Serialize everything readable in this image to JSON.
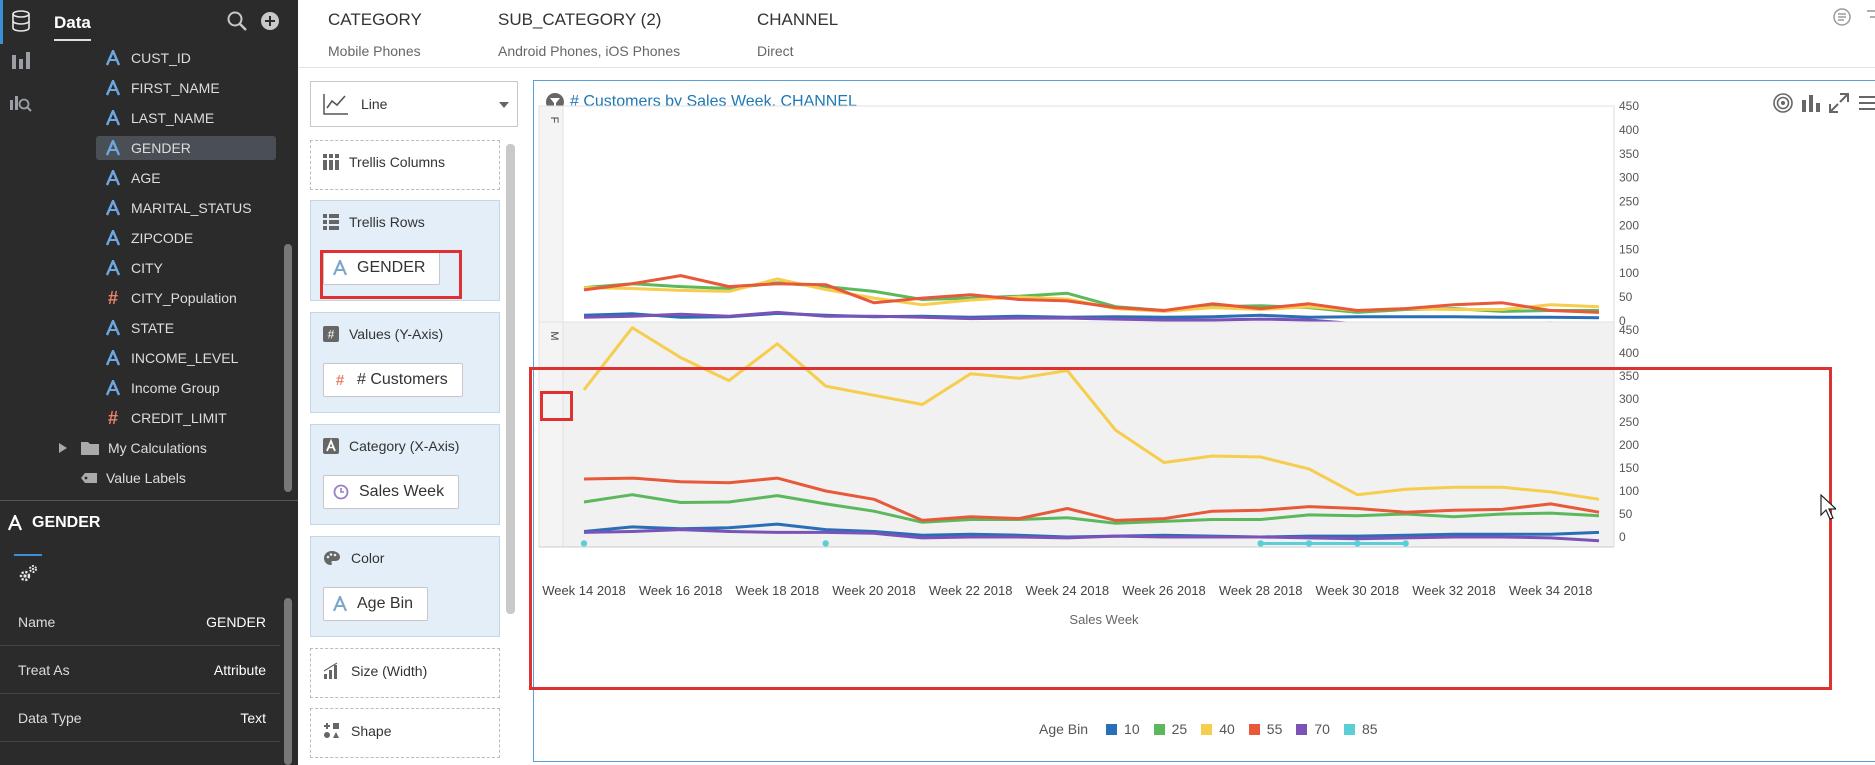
{
  "sidebar": {
    "title": "Data",
    "rail_icons": [
      "database-icon",
      "bar-chart-icon",
      "analytics-icon"
    ],
    "items": [
      {
        "label": "CUST_ID",
        "kind": "attribute"
      },
      {
        "label": "FIRST_NAME",
        "kind": "attribute"
      },
      {
        "label": "LAST_NAME",
        "kind": "attribute"
      },
      {
        "label": "GENDER",
        "kind": "attribute",
        "selected": true
      },
      {
        "label": "AGE",
        "kind": "attribute"
      },
      {
        "label": "MARITAL_STATUS",
        "kind": "attribute"
      },
      {
        "label": "ZIPCODE",
        "kind": "attribute"
      },
      {
        "label": "CITY",
        "kind": "attribute"
      },
      {
        "label": "CITY_Population",
        "kind": "measure"
      },
      {
        "label": "STATE",
        "kind": "attribute"
      },
      {
        "label": "INCOME_LEVEL",
        "kind": "attribute"
      },
      {
        "label": "Income Group",
        "kind": "attribute"
      },
      {
        "label": "CREDIT_LIMIT",
        "kind": "measure"
      }
    ],
    "folders": [
      {
        "label": "My Calculations"
      },
      {
        "label": "Value Labels"
      }
    ]
  },
  "properties": {
    "title": "GENDER",
    "rows": [
      {
        "key": "Name",
        "value": "GENDER"
      },
      {
        "key": "Treat As",
        "value": "Attribute"
      },
      {
        "key": "Data Type",
        "value": "Text"
      }
    ]
  },
  "filters": [
    {
      "name": "CATEGORY",
      "value": "Mobile Phones"
    },
    {
      "name": "SUB_CATEGORY (2)",
      "value": "Android Phones, iOS Phones"
    },
    {
      "name": "CHANNEL",
      "value": "Direct"
    }
  ],
  "grammar": {
    "chart_type": "Line",
    "trellis_columns": "Trellis Columns",
    "trellis_rows": {
      "label": "Trellis Rows",
      "pill": "GENDER"
    },
    "values": {
      "label": "Values (Y-Axis)",
      "pill": "# Customers"
    },
    "category": {
      "label": "Category (X-Axis)",
      "pill": "Sales Week"
    },
    "color": {
      "label": "Color",
      "pill": "Age Bin"
    },
    "size": "Size (Width)",
    "shape": "Shape"
  },
  "colors": {
    "10": "#2a6eb5",
    "25": "#5cb85c",
    "40": "#f6cd4c",
    "55": "#e8583a",
    "70": "#7a52b8",
    "85": "#5bcfd8",
    "accent": "#1f78b4",
    "highlight": "#e03131"
  },
  "chart_data": {
    "type": "line",
    "title": "# Customers by Sales Week, CHANNEL",
    "xlabel": "Sales Week",
    "x_tick_labels": [
      "Week 14 2018",
      "Week 16 2018",
      "Week 18 2018",
      "Week 20 2018",
      "Week 22 2018",
      "Week 24 2018",
      "Week 26 2018",
      "Week 28 2018",
      "Week 30 2018",
      "Week 32 2018",
      "Week 34 2018"
    ],
    "x": [
      14,
      15,
      16,
      17,
      18,
      19,
      20,
      21,
      22,
      23,
      24,
      25,
      26,
      27,
      28,
      29,
      30,
      31,
      32,
      33,
      34,
      35
    ],
    "yticks": [
      "0",
      "50",
      "100",
      "150",
      "200",
      "250",
      "300",
      "350",
      "400",
      "450"
    ],
    "ylim": [
      0,
      450
    ],
    "legend_title": "Age Bin",
    "legend_placement": "bottom",
    "trellis_rows": [
      {
        "label": "F",
        "series": [
          {
            "name": "10",
            "values": [
              12,
              15,
              8,
              9,
              16,
              12,
              9,
              10,
              8,
              10,
              8,
              9,
              8,
              9,
              12,
              8,
              9,
              9,
              9,
              8,
              8,
              7
            ]
          },
          {
            "name": "25",
            "values": [
              70,
              78,
              72,
              68,
              80,
              72,
              62,
              45,
              48,
              52,
              58,
              30,
              22,
              30,
              32,
              28,
              18,
              24,
              26,
              20,
              22,
              22
            ]
          },
          {
            "name": "40",
            "values": [
              70,
              68,
              64,
              62,
              88,
              66,
              48,
              34,
              44,
              50,
              46,
              26,
              20,
              28,
              24,
              30,
              22,
              26,
              24,
              24,
              34,
              30
            ]
          },
          {
            "name": "55",
            "values": [
              65,
              78,
              95,
              72,
              78,
              76,
              38,
              48,
              55,
              45,
              42,
              28,
              22,
              36,
              26,
              36,
              22,
              26,
              34,
              38,
              22,
              18
            ]
          },
          {
            "name": "70",
            "values": [
              8,
              10,
              14,
              10,
              18,
              10,
              10,
              8,
              5,
              6,
              6,
              4,
              2,
              2,
              4,
              2,
              -6,
              -14,
              -16,
              -6,
              -4,
              -8
            ]
          },
          {
            "name": "85",
            "values": [
              -14,
              null,
              -14,
              -14,
              null,
              null,
              null,
              null,
              null,
              null,
              -14,
              null,
              null,
              null,
              null,
              -14,
              null,
              null,
              null,
              null,
              null,
              null
            ]
          }
        ]
      },
      {
        "label": "M",
        "series": [
          {
            "name": "10",
            "values": [
              12,
              22,
              18,
              20,
              28,
              16,
              12,
              4,
              6,
              4,
              0,
              2,
              4,
              2,
              0,
              2,
              2,
              4,
              6,
              6,
              6,
              10
            ]
          },
          {
            "name": "25",
            "values": [
              76,
              92,
              75,
              76,
              90,
              72,
              56,
              32,
              38,
              38,
              42,
              30,
              34,
              38,
              38,
              48,
              46,
              50,
              44,
              50,
              52,
              46
            ]
          },
          {
            "name": "40",
            "values": [
              320,
              455,
              390,
              340,
              420,
              328,
              308,
              288,
              355,
              345,
              362,
              232,
              162,
              176,
              174,
              148,
              92,
              104,
              108,
              108,
              98,
              82
            ]
          },
          {
            "name": "55",
            "values": [
              126,
              128,
              120,
              118,
              128,
              100,
              82,
              36,
              44,
              40,
              62,
              36,
              40,
              56,
              58,
              66,
              62,
              54,
              58,
              60,
              72,
              54
            ]
          },
          {
            "name": "70",
            "values": [
              10,
              12,
              16,
              12,
              10,
              10,
              8,
              -2,
              0,
              0,
              -2,
              2,
              0,
              0,
              0,
              -2,
              -4,
              -2,
              0,
              0,
              -2,
              -8
            ]
          },
          {
            "name": "85",
            "values": [
              -14,
              null,
              null,
              null,
              null,
              -14,
              null,
              null,
              null,
              null,
              null,
              null,
              null,
              null,
              -14,
              -14,
              -14,
              -14,
              null,
              null,
              null,
              null
            ]
          }
        ]
      }
    ]
  }
}
